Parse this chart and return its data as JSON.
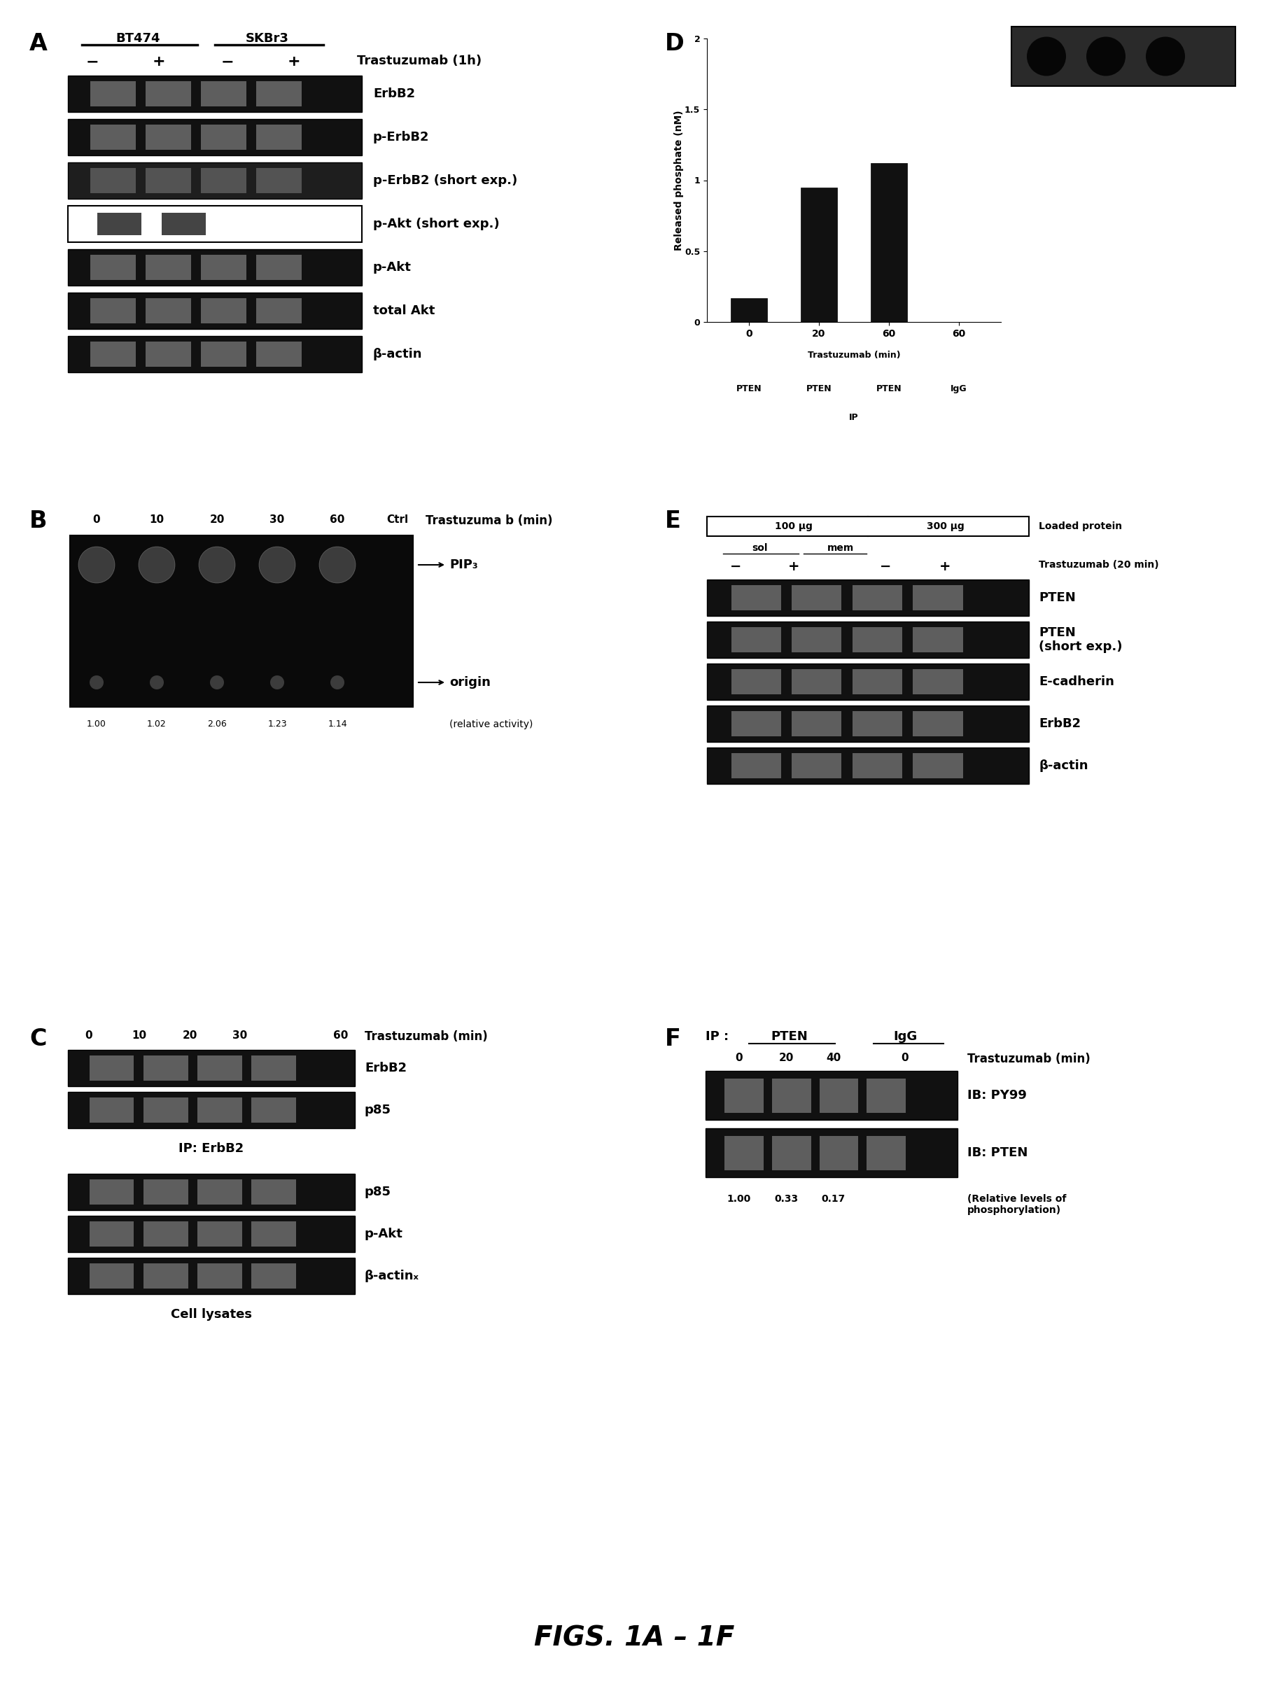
{
  "bg": "#ffffff",
  "pfs": 24,
  "lfs": 13,
  "sfs": 10,
  "title": "FIGS. 1A – 1F",
  "title_fs": 28,
  "panel_A": {
    "col1": "BT474",
    "col2": "SKBr3",
    "col_label": "Trastuzumab (1h)",
    "signs": [
      "−",
      "+",
      "−",
      "+"
    ],
    "blot_labels": [
      "ErbB2",
      "p-ErbB2",
      "p-ErbB2 (short exp.)",
      "p-Akt (short exp.)",
      "p-Akt",
      "total Akt",
      "β-actin"
    ],
    "blot_styles": [
      "dark",
      "dark",
      "dark_noisy",
      "light_box",
      "dark",
      "dark",
      "dark"
    ]
  },
  "panel_B": {
    "timepoints": [
      "0",
      "10",
      "20",
      "30",
      "60",
      "Ctrl"
    ],
    "main_label": "Trastuzuma b (min)",
    "pip3_label": "PIP₃",
    "origin_label": "origin",
    "rel_label": "(relative activity)",
    "rel_vals": [
      "1.00",
      "1.02",
      "2.06",
      "1.23",
      "1.14"
    ]
  },
  "panel_C": {
    "timepoints": [
      "0",
      "10",
      "20",
      "30",
      "",
      "60"
    ],
    "main_label": "Trastuzumab (min)",
    "ip_labels": [
      "ErbB2",
      "p85"
    ],
    "ip_section": "IP: ErbB2",
    "lysate_labels": [
      "p85",
      "p-Akt",
      "β-actinₓ"
    ],
    "lysate_section": "Cell lysates"
  },
  "panel_D": {
    "bars": [
      0.17,
      0.95,
      1.12,
      0.0
    ],
    "bar_times": [
      "0",
      "20",
      "60",
      "60"
    ],
    "bar_ip": [
      "PTEN",
      "PTEN",
      "PTEN",
      "IgG"
    ],
    "yticks": [
      0,
      0.5,
      1.0,
      1.5,
      2.0
    ],
    "ylim": [
      0,
      2.0
    ],
    "ylabel": "Released phosphate (nM)",
    "time_header": "Trastuzumab (min)",
    "ip_header": "IP"
  },
  "panel_E": {
    "hdr1": "100 μg",
    "hdr2": "300 μg",
    "hdr_label": "Loaded protein",
    "sol_label": "sol",
    "mem_label": "mem",
    "signs": [
      "−",
      "+",
      "−",
      "+"
    ],
    "trt_label": "Trastuzumab (20 min)",
    "blot_labels": [
      "PTEN",
      "PTEN\n(short exp.)",
      "E-cadherin",
      "ErbB2",
      "β-actin"
    ]
  },
  "panel_F": {
    "ip1": "PTEN",
    "ip2": "IgG",
    "timepoints": [
      "0",
      "20",
      "40",
      "0"
    ],
    "trt_label": "Trastuzumab (min)",
    "blot_labels": [
      "IB: PY99",
      "IB: PTEN"
    ],
    "rel_vals": [
      "1.00",
      "0.33",
      "0.17"
    ],
    "rel_label": "(Relative levels of\nphosphorylation)"
  }
}
